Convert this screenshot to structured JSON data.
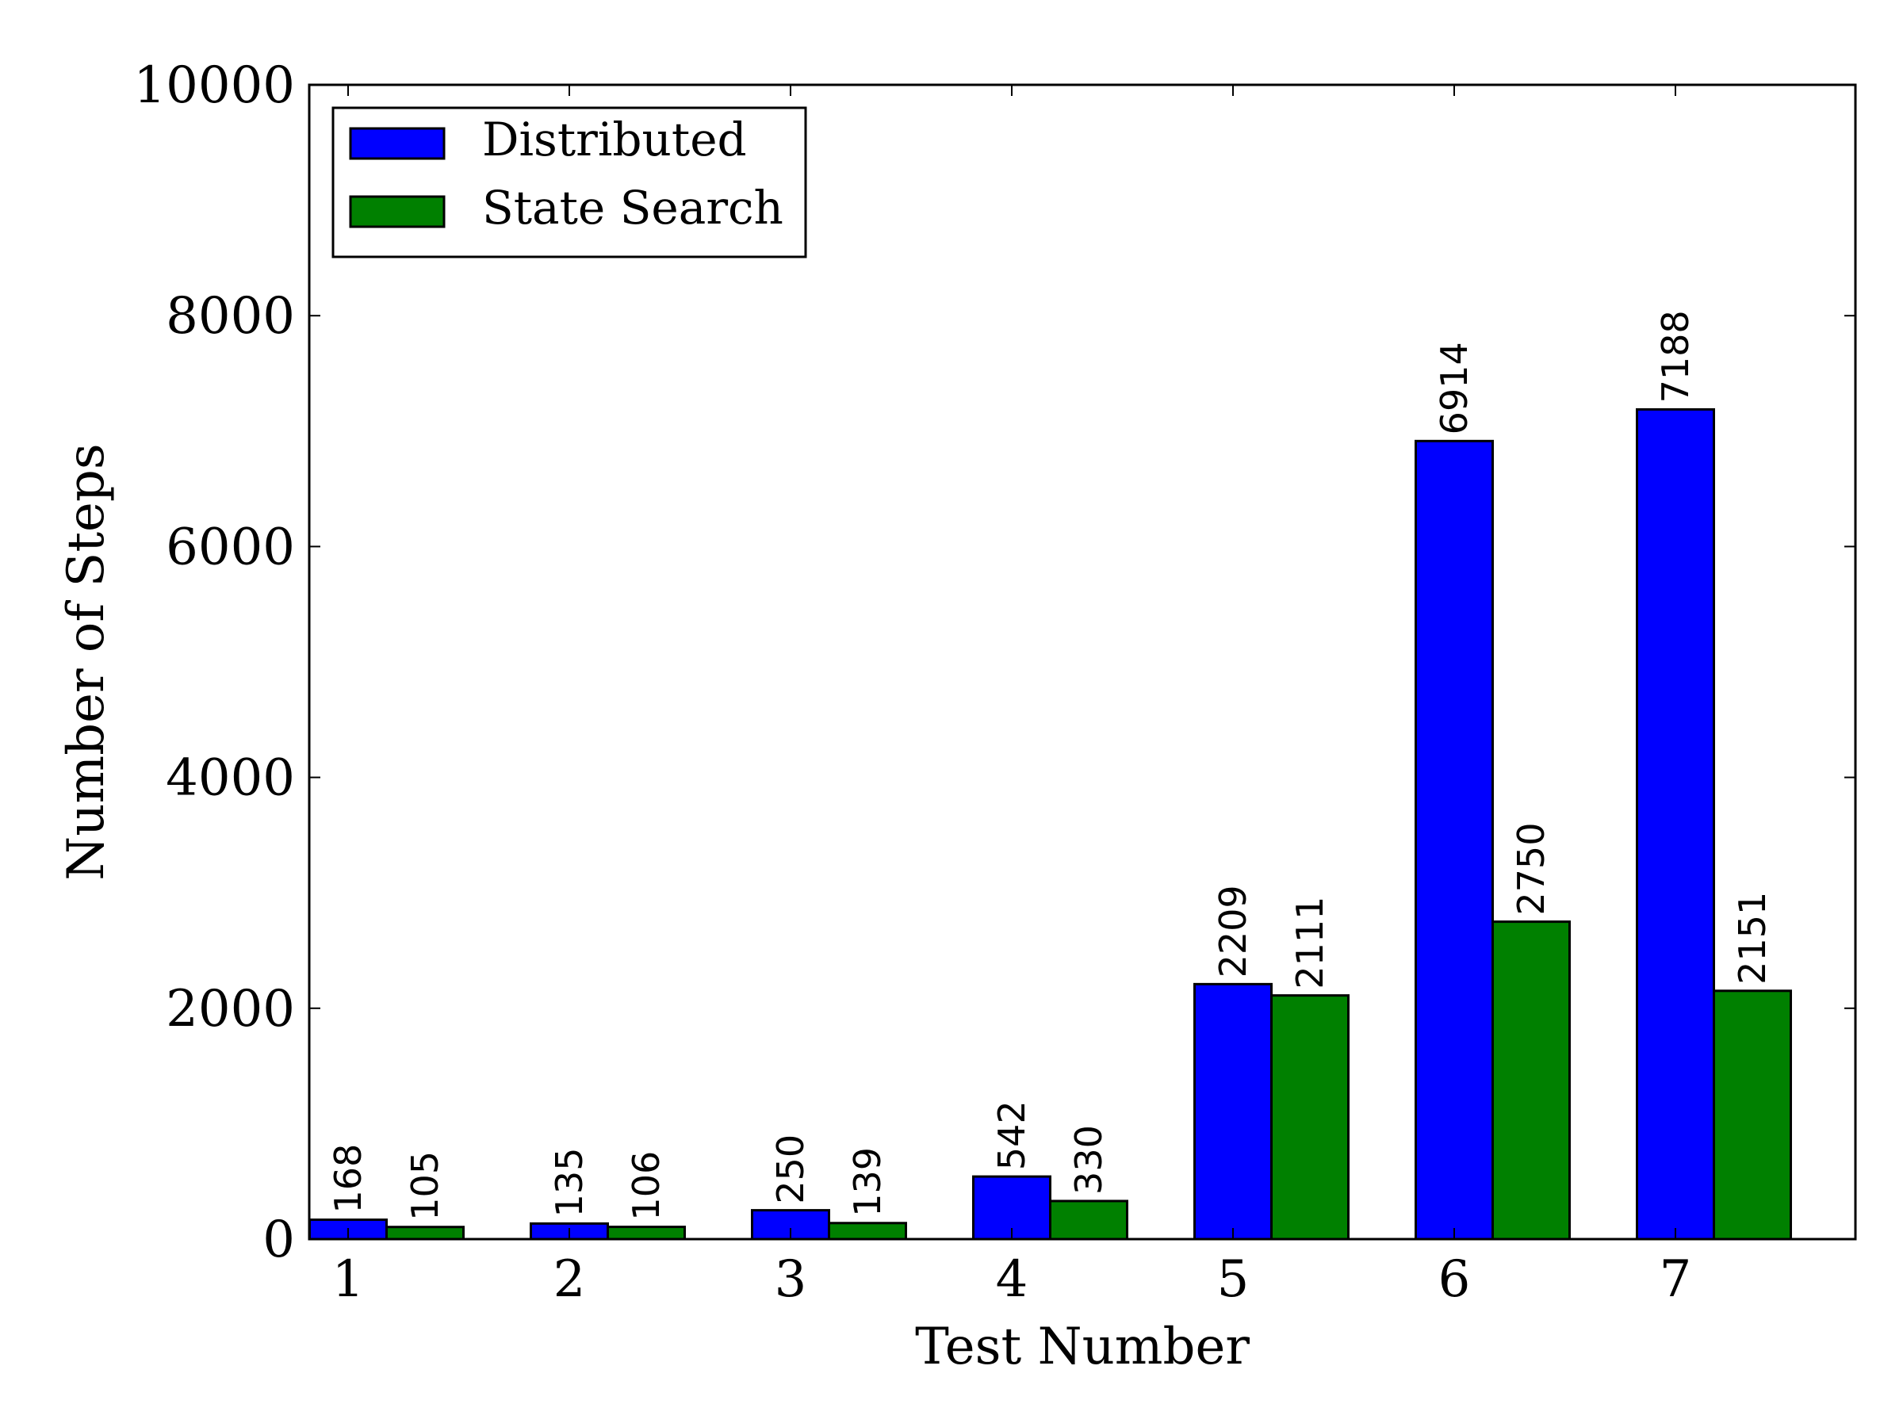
{
  "chart_data": {
    "type": "bar",
    "title": "",
    "xlabel": "Test Number",
    "ylabel": "Number of Steps",
    "ylim": [
      0,
      10000
    ],
    "yticks": [
      0,
      2000,
      4000,
      6000,
      8000,
      10000
    ],
    "grid": false,
    "legend_position": "top-left",
    "categories": [
      "1",
      "2",
      "3",
      "4",
      "5",
      "6",
      "7"
    ],
    "series": [
      {
        "name": "Distributed",
        "color": "#0000ff",
        "values": [
          168,
          135,
          250,
          542,
          2209,
          6914,
          7188
        ]
      },
      {
        "name": "State Search",
        "color": "#008000",
        "values": [
          105,
          106,
          139,
          330,
          2111,
          2750,
          2151
        ]
      }
    ]
  }
}
